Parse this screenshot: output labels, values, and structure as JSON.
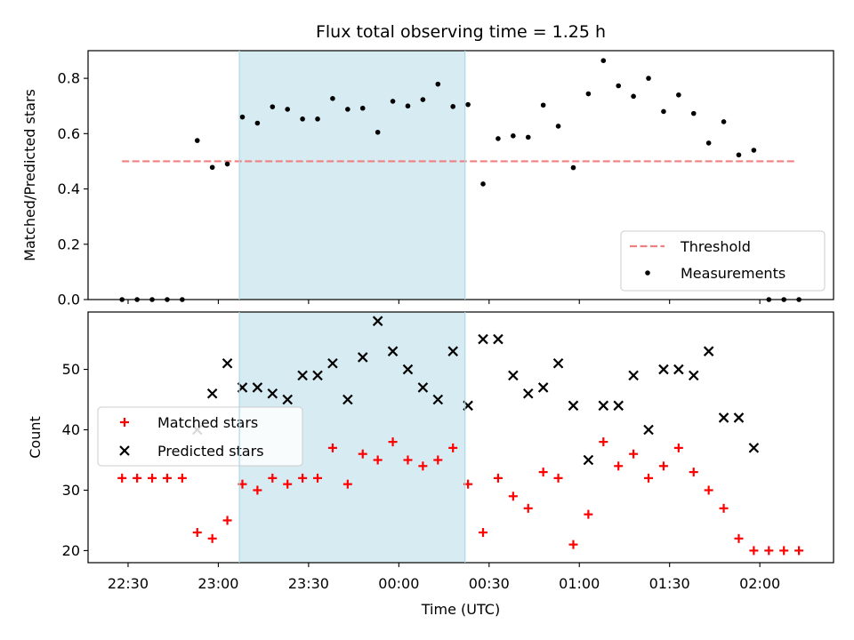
{
  "chart_data": [
    {
      "type": "scatter",
      "title": "Flux total observing time = 1.25 h",
      "xlabel": "",
      "ylabel": "Matched/Predicted stars",
      "ylim": [
        0,
        0.9
      ],
      "yticks": [
        "0.0",
        "0.2",
        "0.4",
        "0.6",
        "0.8"
      ],
      "grid": false,
      "legend_position": "lower-right",
      "highlight": {
        "x_start": "23:07",
        "x_end": "00:22",
        "color": "#add8e6"
      },
      "threshold": {
        "name": "Threshold",
        "value": 0.5,
        "x_start": "22:28",
        "x_end": "02:12",
        "color": "#f08080",
        "style": "dashed"
      },
      "series": [
        {
          "name": "Measurements",
          "color": "#000000",
          "points": [
            [
              "22:28",
              0.0
            ],
            [
              "22:33",
              0.0
            ],
            [
              "22:38",
              0.0
            ],
            [
              "22:43",
              0.0
            ],
            [
              "22:48",
              0.0
            ],
            [
              "22:53",
              0.575
            ],
            [
              "22:58",
              0.478
            ],
            [
              "23:03",
              0.49
            ],
            [
              "23:08",
              0.66
            ],
            [
              "23:13",
              0.638
            ],
            [
              "23:18",
              0.697
            ],
            [
              "23:23",
              0.688
            ],
            [
              "23:28",
              0.653
            ],
            [
              "23:33",
              0.653
            ],
            [
              "23:38",
              0.727
            ],
            [
              "23:43",
              0.688
            ],
            [
              "23:48",
              0.692
            ],
            [
              "23:53",
              0.605
            ],
            [
              "23:58",
              0.717
            ],
            [
              "00:03",
              0.7
            ],
            [
              "00:08",
              0.723
            ],
            [
              "00:13",
              0.779
            ],
            [
              "00:18",
              0.698
            ],
            [
              "00:23",
              0.705
            ],
            [
              "00:28",
              0.418
            ],
            [
              "00:33",
              0.582
            ],
            [
              "00:38",
              0.592
            ],
            [
              "00:43",
              0.587
            ],
            [
              "00:48",
              0.703
            ],
            [
              "00:53",
              0.627
            ],
            [
              "00:58",
              0.477
            ],
            [
              "01:03",
              0.744
            ],
            [
              "01:08",
              0.864
            ],
            [
              "01:13",
              0.773
            ],
            [
              "01:18",
              0.735
            ],
            [
              "01:23",
              0.8
            ],
            [
              "01:28",
              0.68
            ],
            [
              "01:33",
              0.74
            ],
            [
              "01:38",
              0.673
            ],
            [
              "01:43",
              0.566
            ],
            [
              "01:48",
              0.643
            ],
            [
              "01:53",
              0.523
            ],
            [
              "01:58",
              0.54
            ],
            [
              "02:03",
              0.0
            ],
            [
              "02:08",
              0.0
            ],
            [
              "02:13",
              0.0
            ]
          ]
        }
      ]
    },
    {
      "type": "scatter",
      "title": "",
      "xlabel": "Time (UTC)",
      "ylabel": "Count",
      "xticks": [
        "22:30",
        "23:00",
        "23:30",
        "00:00",
        "00:30",
        "01:00",
        "01:30",
        "02:00"
      ],
      "yticks": [
        "20",
        "30",
        "40",
        "50"
      ],
      "ylim": [
        18,
        59.5
      ],
      "grid": false,
      "legend_position": "center-left",
      "highlight": {
        "x_start": "23:07",
        "x_end": "00:22",
        "color": "#add8e6"
      },
      "series": [
        {
          "name": "Matched stars",
          "marker": "plus",
          "color": "#ff0000",
          "points": [
            [
              "22:28",
              32
            ],
            [
              "22:33",
              32
            ],
            [
              "22:38",
              32
            ],
            [
              "22:43",
              32
            ],
            [
              "22:48",
              32
            ],
            [
              "22:53",
              23
            ],
            [
              "22:58",
              22
            ],
            [
              "23:03",
              25
            ],
            [
              "23:08",
              31
            ],
            [
              "23:13",
              30
            ],
            [
              "23:18",
              32
            ],
            [
              "23:23",
              31
            ],
            [
              "23:28",
              32
            ],
            [
              "23:33",
              32
            ],
            [
              "23:38",
              37
            ],
            [
              "23:43",
              31
            ],
            [
              "23:48",
              36
            ],
            [
              "23:53",
              35
            ],
            [
              "23:58",
              38
            ],
            [
              "00:03",
              35
            ],
            [
              "00:08",
              34
            ],
            [
              "00:13",
              35
            ],
            [
              "00:18",
              37
            ],
            [
              "00:23",
              31
            ],
            [
              "00:28",
              23
            ],
            [
              "00:33",
              32
            ],
            [
              "00:38",
              29
            ],
            [
              "00:43",
              27
            ],
            [
              "00:48",
              33
            ],
            [
              "00:53",
              32
            ],
            [
              "00:58",
              21
            ],
            [
              "01:03",
              26
            ],
            [
              "01:08",
              38
            ],
            [
              "01:13",
              34
            ],
            [
              "01:18",
              36
            ],
            [
              "01:23",
              32
            ],
            [
              "01:28",
              34
            ],
            [
              "01:33",
              37
            ],
            [
              "01:38",
              33
            ],
            [
              "01:43",
              30
            ],
            [
              "01:48",
              27
            ],
            [
              "01:53",
              22
            ],
            [
              "01:58",
              20
            ],
            [
              "02:03",
              20
            ],
            [
              "02:08",
              20
            ],
            [
              "02:13",
              20
            ]
          ]
        },
        {
          "name": "Predicted stars",
          "marker": "x",
          "color": "#000000",
          "points": [
            [
              "22:53",
              40
            ],
            [
              "22:58",
              46
            ],
            [
              "23:03",
              51
            ],
            [
              "23:08",
              47
            ],
            [
              "23:13",
              47
            ],
            [
              "23:18",
              46
            ],
            [
              "23:23",
              45
            ],
            [
              "23:28",
              49
            ],
            [
              "23:33",
              49
            ],
            [
              "23:38",
              51
            ],
            [
              "23:43",
              45
            ],
            [
              "23:48",
              52
            ],
            [
              "23:53",
              58
            ],
            [
              "23:58",
              53
            ],
            [
              "00:03",
              50
            ],
            [
              "00:08",
              47
            ],
            [
              "00:13",
              45
            ],
            [
              "00:18",
              53
            ],
            [
              "00:23",
              44
            ],
            [
              "00:28",
              55
            ],
            [
              "00:33",
              55
            ],
            [
              "00:38",
              49
            ],
            [
              "00:43",
              46
            ],
            [
              "00:48",
              47
            ],
            [
              "00:53",
              51
            ],
            [
              "00:58",
              44
            ],
            [
              "01:03",
              35
            ],
            [
              "01:08",
              44
            ],
            [
              "01:13",
              44
            ],
            [
              "01:18",
              49
            ],
            [
              "01:23",
              40
            ],
            [
              "01:28",
              50
            ],
            [
              "01:33",
              50
            ],
            [
              "01:38",
              49
            ],
            [
              "01:43",
              53
            ],
            [
              "01:48",
              42
            ],
            [
              "01:53",
              42
            ],
            [
              "01:58",
              37
            ]
          ]
        }
      ]
    }
  ]
}
